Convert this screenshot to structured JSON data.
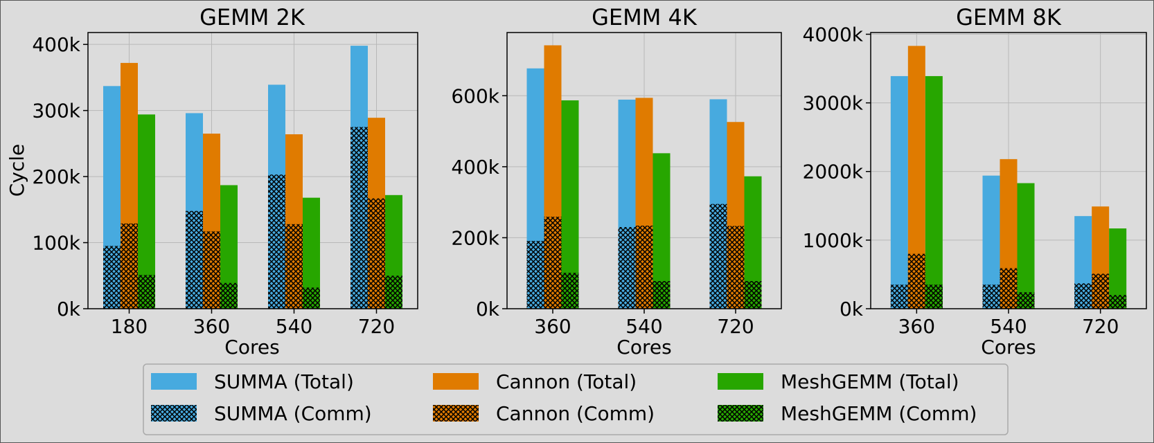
{
  "colors": {
    "summa": "#47aadf",
    "cannon": "#e07b00",
    "meshgemm": "#27a600",
    "background": "#dcdcdc",
    "grid": "#b8b8b8"
  },
  "legend": {
    "items": [
      {
        "label": "SUMMA (Total)",
        "series": "summa",
        "hatched": false
      },
      {
        "label": "SUMMA (Comm)",
        "series": "summa",
        "hatched": true
      },
      {
        "label": "Cannon (Total)",
        "series": "cannon",
        "hatched": false
      },
      {
        "label": "Cannon (Comm)",
        "series": "cannon",
        "hatched": true
      },
      {
        "label": "MeshGEMM (Total)",
        "series": "meshgemm",
        "hatched": false
      },
      {
        "label": "MeshGEMM (Comm)",
        "series": "meshgemm",
        "hatched": true
      }
    ]
  },
  "chart_data": [
    {
      "type": "bar",
      "title": "GEMM 2K",
      "xlabel": "Cores",
      "ylabel": "Cycle",
      "categories": [
        "180",
        "360",
        "540",
        "720"
      ],
      "ylim": [
        0,
        418
      ],
      "yticks": [
        0,
        100,
        200,
        300,
        400
      ],
      "ytick_labels": [
        "0k",
        "100k",
        "200k",
        "300k",
        "400k"
      ],
      "grid": true,
      "series": [
        {
          "name": "SUMMA",
          "color_key": "summa",
          "total": [
            337,
            296,
            339,
            398
          ],
          "comm": [
            95,
            148,
            203,
            275
          ]
        },
        {
          "name": "Cannon",
          "color_key": "cannon",
          "total": [
            372,
            265,
            264,
            289
          ],
          "comm": [
            129,
            117,
            128,
            167
          ]
        },
        {
          "name": "MeshGEMM",
          "color_key": "meshgemm",
          "total": [
            294,
            187,
            168,
            172
          ],
          "comm": [
            51,
            39,
            32,
            50
          ]
        }
      ]
    },
    {
      "type": "bar",
      "title": "GEMM 4K",
      "xlabel": "Cores",
      "ylabel": "",
      "categories": [
        "360",
        "540",
        "720"
      ],
      "ylim": [
        0,
        778
      ],
      "yticks": [
        0,
        200,
        400,
        600
      ],
      "ytick_labels": [
        "0k",
        "200k",
        "400k",
        "600k"
      ],
      "grid": true,
      "series": [
        {
          "name": "SUMMA",
          "color_key": "summa",
          "total": [
            677,
            589,
            590
          ],
          "comm": [
            191,
            230,
            295
          ]
        },
        {
          "name": "Cannon",
          "color_key": "cannon",
          "total": [
            742,
            594,
            526
          ],
          "comm": [
            259,
            234,
            233
          ]
        },
        {
          "name": "MeshGEMM",
          "color_key": "meshgemm",
          "total": [
            587,
            438,
            373
          ],
          "comm": [
            101,
            78,
            78
          ]
        }
      ]
    },
    {
      "type": "bar",
      "title": "GEMM 8K",
      "xlabel": "Cores",
      "ylabel": "",
      "categories": [
        "360",
        "540",
        "720"
      ],
      "ylim": [
        0,
        4025
      ],
      "yticks": [
        0,
        1000,
        2000,
        3000,
        4000
      ],
      "ytick_labels": [
        "0k",
        "1000k",
        "2000k",
        "3000k",
        "4000k"
      ],
      "grid": true,
      "series": [
        {
          "name": "SUMMA",
          "color_key": "summa",
          "total": [
            3390,
            1940,
            1350
          ],
          "comm": [
            350,
            350,
            370
          ]
        },
        {
          "name": "Cannon",
          "color_key": "cannon",
          "total": [
            3830,
            2180,
            1490
          ],
          "comm": [
            800,
            590,
            510
          ]
        },
        {
          "name": "MeshGEMM",
          "color_key": "meshgemm",
          "total": [
            3390,
            1830,
            1170
          ],
          "comm": [
            350,
            240,
            200
          ]
        }
      ]
    }
  ]
}
